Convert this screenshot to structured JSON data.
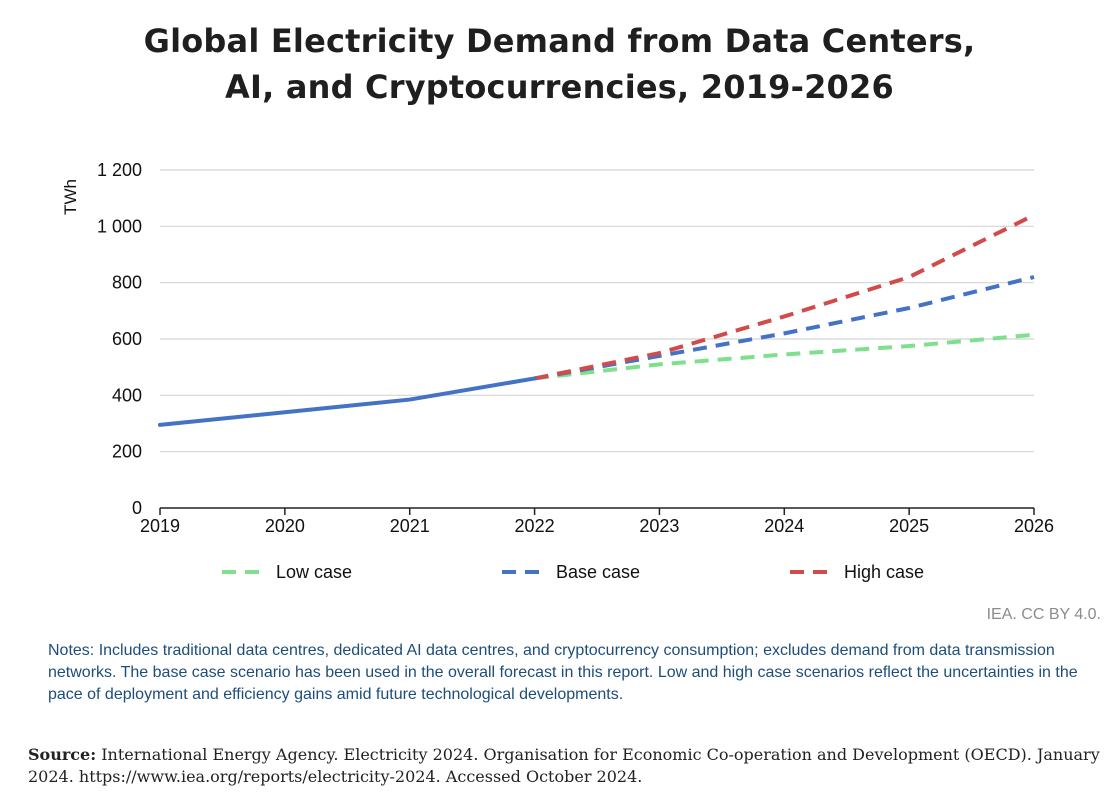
{
  "chart_data": {
    "type": "line",
    "title_line1": "Global Electricity Demand from Data Centers,",
    "title_line2": "AI, and Cryptocurrencies, 2019-2026",
    "ylabel": "TWh",
    "xlabel": "",
    "x": [
      2019,
      2020,
      2021,
      2022,
      2023,
      2024,
      2025,
      2026
    ],
    "ylim": [
      0,
      1200
    ],
    "yticks": [
      0,
      200,
      400,
      600,
      800,
      1000,
      1200
    ],
    "ytick_labels": [
      "0",
      "200",
      "400",
      "600",
      "800",
      "1 000",
      "1 200"
    ],
    "xtick_labels": [
      "2019",
      "2020",
      "2021",
      "2022",
      "2023",
      "2024",
      "2025",
      "2026"
    ],
    "grid": "horizontal",
    "historical": {
      "x": [
        2019,
        2020,
        2021,
        2022
      ],
      "values": [
        295,
        340,
        385,
        460
      ],
      "color": "#4472c4"
    },
    "series": [
      {
        "name": "Low case",
        "x": [
          2022,
          2023,
          2024,
          2025,
          2026
        ],
        "values": [
          460,
          510,
          545,
          575,
          615
        ],
        "color": "#7ee08c",
        "style": "dashed"
      },
      {
        "name": "Base case",
        "x": [
          2022,
          2023,
          2024,
          2025,
          2026
        ],
        "values": [
          460,
          540,
          620,
          710,
          820
        ],
        "color": "#4472c4",
        "style": "dashed"
      },
      {
        "name": "High case",
        "x": [
          2022,
          2023,
          2024,
          2025,
          2026
        ],
        "values": [
          460,
          550,
          680,
          820,
          1040
        ],
        "color": "#d14b4b",
        "style": "dashed"
      }
    ],
    "legend_placement": "bottom"
  },
  "credit": "IEA. CC BY 4.0.",
  "notes": "Notes: Includes traditional data centres, dedicated AI data centres, and cryptocurrency consumption; excludes demand from data transmission networks. The base case scenario has been used in the overall forecast in this report. Low and high case scenarios reflect the uncertainties in the pace of deployment and efficiency gains amid future technological developments.",
  "source_label": "Source:",
  "source_text": " International Energy Agency. Electricity 2024. Organisation for Economic Co-operation and Development (OECD). January 2024. https://www.iea.org/reports/electricity-2024. Accessed October 2024."
}
